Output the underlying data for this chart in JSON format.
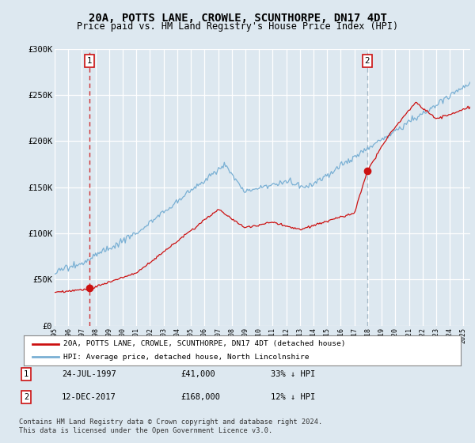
{
  "title": "20A, POTTS LANE, CROWLE, SCUNTHORPE, DN17 4DT",
  "subtitle": "Price paid vs. HM Land Registry's House Price Index (HPI)",
  "ylim": [
    0,
    300000
  ],
  "yticks": [
    0,
    50000,
    100000,
    150000,
    200000,
    250000,
    300000
  ],
  "ytick_labels": [
    "£0",
    "£50K",
    "£100K",
    "£150K",
    "£200K",
    "£250K",
    "£300K"
  ],
  "background_color": "#dde8f0",
  "plot_bg": "#dde8f0",
  "hpi_color": "#7ab0d4",
  "price_color": "#cc1111",
  "dashed1_color": "#cc1111",
  "dashed2_color": "#9ab0c0",
  "transaction1": {
    "date": "24-JUL-1997",
    "price": 41000,
    "label": "1",
    "year": 1997.56
  },
  "transaction2": {
    "date": "12-DEC-2017",
    "price": 168000,
    "label": "2",
    "year": 2017.94
  },
  "legend_entry1": "20A, POTTS LANE, CROWLE, SCUNTHORPE, DN17 4DT (detached house)",
  "legend_entry2": "HPI: Average price, detached house, North Lincolnshire",
  "table_row1": [
    "1",
    "24-JUL-1997",
    "£41,000",
    "33% ↓ HPI"
  ],
  "table_row2": [
    "2",
    "12-DEC-2017",
    "£168,000",
    "12% ↓ HPI"
  ],
  "footer": "Contains HM Land Registry data © Crown copyright and database right 2024.\nThis data is licensed under the Open Government Licence v3.0.",
  "title_fontsize": 10,
  "subtitle_fontsize": 8.5,
  "tick_fontsize": 7.5
}
